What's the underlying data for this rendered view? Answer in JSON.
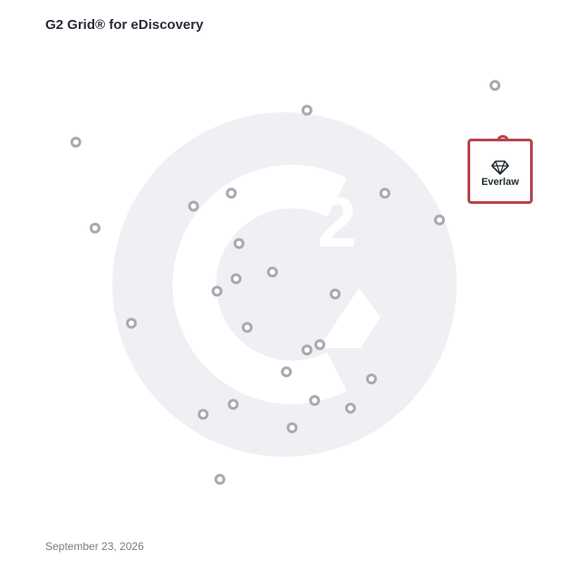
{
  "title": "G2 Grid® for eDiscovery",
  "date": "September 23, 2026",
  "colors": {
    "marker": "#a8a9b2",
    "highlight": "#b8454c",
    "watermark": "#eef0f3",
    "gradient_top_left": "#6a3fb0",
    "gradient_top_right": "#e8612f",
    "gradient_bottom_left": "#2a9fd6",
    "gradient_bottom_right": "#7a3bb5"
  },
  "icons": {
    "watermark": "g2-logo-icon",
    "highlight_logo": "everlaw-diamond-icon"
  },
  "chart_data": {
    "type": "scatter",
    "title": "G2 Grid® for eDiscovery",
    "xlim": [
      0,
      100
    ],
    "ylim": [
      0,
      100
    ],
    "grid": true,
    "quadrant_split": [
      50,
      50
    ],
    "highlighted": {
      "label": "Everlaw",
      "x": 95,
      "y": 80
    },
    "points": [
      {
        "x": 93.8,
        "y": 91.8
      },
      {
        "x": 54.5,
        "y": 86.6
      },
      {
        "x": 6.2,
        "y": 79.9
      },
      {
        "x": 38.7,
        "y": 69.2
      },
      {
        "x": 30.8,
        "y": 66.5
      },
      {
        "x": 70.8,
        "y": 69.2
      },
      {
        "x": 82.2,
        "y": 63.6
      },
      {
        "x": 10.2,
        "y": 61.9
      },
      {
        "x": 40.3,
        "y": 58.7
      },
      {
        "x": 47.3,
        "y": 52.7
      },
      {
        "x": 39.7,
        "y": 51.3
      },
      {
        "x": 35.7,
        "y": 48.7
      },
      {
        "x": 60.4,
        "y": 48.1
      },
      {
        "x": 17.8,
        "y": 42.0
      },
      {
        "x": 42.0,
        "y": 41.1
      },
      {
        "x": 57.2,
        "y": 37.5
      },
      {
        "x": 54.5,
        "y": 36.4
      },
      {
        "x": 50.2,
        "y": 31.8
      },
      {
        "x": 68.0,
        "y": 30.3
      },
      {
        "x": 56.1,
        "y": 25.8
      },
      {
        "x": 39.1,
        "y": 25.0
      },
      {
        "x": 32.8,
        "y": 22.9
      },
      {
        "x": 63.6,
        "y": 24.2
      },
      {
        "x": 51.4,
        "y": 20.1
      },
      {
        "x": 36.3,
        "y": 9.3
      }
    ]
  },
  "callout": {
    "label": "Everlaw"
  }
}
